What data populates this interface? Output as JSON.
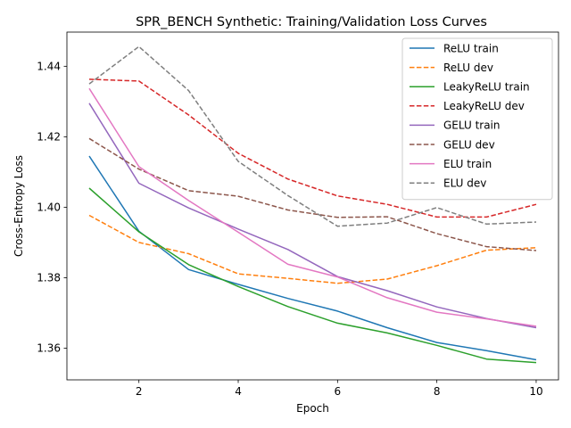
{
  "chart_data": {
    "type": "line",
    "title": "SPR_BENCH Synthetic: Training/Validation Loss Curves",
    "xlabel": "Epoch",
    "ylabel": "Cross-Entropy Loss",
    "xlim": [
      0.55,
      10.45
    ],
    "ylim": [
      1.351,
      1.4497
    ],
    "xticks": [
      2,
      4,
      6,
      8,
      10
    ],
    "yticks": [
      1.36,
      1.38,
      1.4,
      1.42,
      1.44
    ],
    "ytick_labels": [
      "1.36",
      "1.38",
      "1.40",
      "1.42",
      "1.44"
    ],
    "legend_position": "upper-right",
    "grid": false,
    "x": [
      1,
      2,
      3,
      4,
      5,
      6,
      7,
      8,
      9,
      10
    ],
    "series": [
      {
        "name": "ReLU train",
        "color": "#1f77b4",
        "dashed": false,
        "values": [
          1.4145,
          1.3932,
          1.3823,
          1.3781,
          1.3741,
          1.3705,
          1.3658,
          1.3616,
          1.3593,
          1.3567
        ]
      },
      {
        "name": "ReLU dev",
        "color": "#ff7f0e",
        "dashed": true,
        "values": [
          1.3977,
          1.39,
          1.3868,
          1.3811,
          1.3798,
          1.3784,
          1.3796,
          1.3834,
          1.3878,
          1.3885
        ]
      },
      {
        "name": "LeakyReLU train",
        "color": "#2ca02c",
        "dashed": false,
        "values": [
          1.4054,
          1.393,
          1.3837,
          1.3775,
          1.3718,
          1.3671,
          1.3643,
          1.3608,
          1.3569,
          1.3559
        ]
      },
      {
        "name": "LeakyReLU dev",
        "color": "#d62728",
        "dashed": true,
        "values": [
          1.4363,
          1.4358,
          1.4262,
          1.4153,
          1.408,
          1.4032,
          1.4008,
          1.3972,
          1.3972,
          1.4008
        ]
      },
      {
        "name": "GELU train",
        "color": "#9467bd",
        "dashed": false,
        "values": [
          1.4295,
          1.4068,
          1.3998,
          1.3938,
          1.388,
          1.3803,
          1.3763,
          1.3717,
          1.3684,
          1.3658
        ]
      },
      {
        "name": "GELU dev",
        "color": "#8c564b",
        "dashed": true,
        "values": [
          1.4195,
          1.4108,
          1.4047,
          1.4031,
          1.3992,
          1.3971,
          1.3973,
          1.3925,
          1.3888,
          1.3877
        ]
      },
      {
        "name": "ELU train",
        "color": "#e377c2",
        "dashed": false,
        "values": [
          1.4337,
          1.4115,
          1.4019,
          1.3929,
          1.3838,
          1.3802,
          1.3743,
          1.3702,
          1.3683,
          1.3662
        ]
      },
      {
        "name": "ELU dev",
        "color": "#7f7f7f",
        "dashed": true,
        "values": [
          1.435,
          1.4456,
          1.4331,
          1.413,
          1.4033,
          1.3946,
          1.3955,
          1.3999,
          1.3952,
          1.3958
        ]
      }
    ]
  }
}
